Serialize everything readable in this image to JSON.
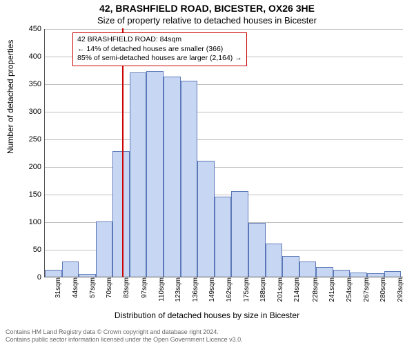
{
  "title_main": "42, BRASHFIELD ROAD, BICESTER, OX26 3HE",
  "title_sub": "Size of property relative to detached houses in Bicester",
  "ylabel": "Number of detached properties",
  "xlabel": "Distribution of detached houses by size in Bicester",
  "chart": {
    "type": "histogram",
    "background_color": "#ffffff",
    "grid_color": "#bfbfbf",
    "bar_fill": "#c7d6f2",
    "bar_stroke": "#5b79b8",
    "bar_stroke_width": 1,
    "marker_color": "#cc0000",
    "marker_x": 84,
    "ylim": [
      0,
      450
    ],
    "ytick_step": 50,
    "xlim": [
      25,
      300
    ],
    "bin_width": 13,
    "categories": [
      "31sqm",
      "44sqm",
      "57sqm",
      "70sqm",
      "83sqm",
      "97sqm",
      "110sqm",
      "123sqm",
      "136sqm",
      "149sqm",
      "162sqm",
      "175sqm",
      "188sqm",
      "201sqm",
      "214sqm",
      "228sqm",
      "241sqm",
      "254sqm",
      "267sqm",
      "280sqm",
      "293sqm"
    ],
    "xtick_positions": [
      31,
      44,
      57,
      70,
      83,
      97,
      110,
      123,
      136,
      149,
      162,
      175,
      188,
      201,
      214,
      228,
      241,
      254,
      267,
      280,
      293
    ],
    "bins_left": [
      25,
      38,
      51,
      64,
      77,
      90,
      103,
      116,
      129,
      142,
      155,
      168,
      181,
      194,
      207,
      220,
      233,
      246,
      259,
      272,
      285
    ],
    "values": [
      12,
      28,
      5,
      100,
      228,
      370,
      373,
      363,
      355,
      210,
      145,
      155,
      98,
      60,
      38,
      28,
      18,
      12,
      8,
      6,
      10
    ],
    "axis_fontsize": 11,
    "label_fontsize": 12,
    "title_fontsize": 14
  },
  "annotation": {
    "border_color": "#cc0000",
    "lines": [
      "42 BRASHFIELD ROAD: 84sqm",
      "← 14% of detached houses are smaller (366)",
      "85% of semi-detached houses are larger (2,164) →"
    ]
  },
  "footer_lines": [
    "Contains HM Land Registry data © Crown copyright and database right 2024.",
    "Contains public sector information licensed under the Open Government Licence v3.0."
  ]
}
